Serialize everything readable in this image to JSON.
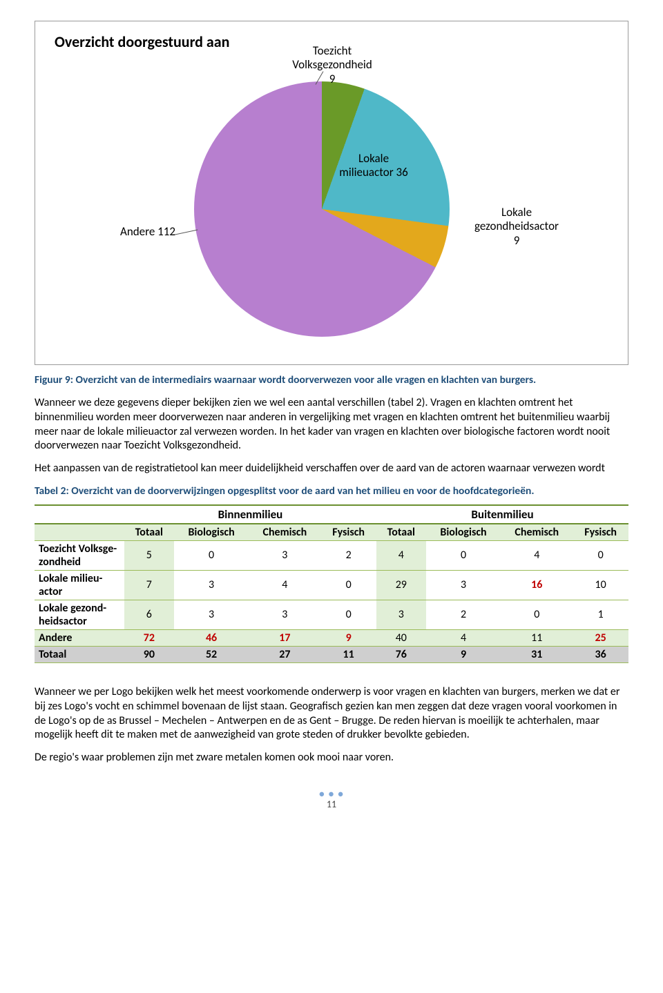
{
  "chart": {
    "title": "Overzicht doorgestuurd aan",
    "slices": [
      {
        "label_text": "Toezicht\nVolksgezondheid\n9",
        "value": 9,
        "color": "#6a9a28"
      },
      {
        "label_text": "Lokale\nmilieuactor 36",
        "value": 36,
        "color": "#4fb8c8"
      },
      {
        "label_text": "Lokale\ngezondheidsactor\n9",
        "value": 9,
        "color": "#e3a81c"
      },
      {
        "label_text": "Andere 112",
        "value": 112,
        "color": "#b77fcf"
      }
    ],
    "labels": {
      "toezicht": "Toezicht\nVolksgezondheid\n9",
      "milieuactor": "Lokale\nmilieuactor 36",
      "gezondheidsactor": "Lokale\ngezondheidsactor\n9",
      "andere": "Andere 112"
    },
    "background_color": "#ffffff",
    "border_color": "#999999"
  },
  "figure_caption": "Figuur 9: Overzicht van de intermediairs waarnaar wordt doorverwezen voor alle vragen en klachten van burgers.",
  "paragraph1": "Wanneer we deze gegevens dieper bekijken zien we wel een aantal verschillen (tabel 2). Vragen en klachten omtrent het binnenmilieu worden meer doorverwezen naar anderen in vergelijking met vragen en klachten omtrent het buitenmilieu waarbij meer naar de lokale milieuactor zal verwezen worden. In het kader van vragen en klachten over biologische factoren wordt nooit doorverwezen naar Toezicht Volksgezondheid.",
  "paragraph2": "Het aanpassen van de registratietool kan meer duidelijkheid verschaffen over de aard van de actoren waarnaar verwezen wordt",
  "table_caption": "Tabel 2: Overzicht van de doorverwijzingen opgesplitst voor de aard van het milieu en voor de hoofdcategorieën.",
  "table": {
    "group_headers": [
      "Binnenmilieu",
      "Buitenmilieu"
    ],
    "sub_headers": [
      "Totaal",
      "Biologisch",
      "Chemisch",
      "Fysisch",
      "Totaal",
      "Biologisch",
      "Chemisch",
      "Fysisch"
    ],
    "rows": [
      {
        "label": "Toezicht Volksge-zondheid",
        "cells": [
          "5",
          "0",
          "3",
          "2",
          "4",
          "0",
          "4",
          "0"
        ],
        "red_idx": []
      },
      {
        "label": "Lokale milieu-actor",
        "cells": [
          "7",
          "3",
          "4",
          "0",
          "29",
          "3",
          "16",
          "10"
        ],
        "red_idx": [
          6
        ]
      },
      {
        "label": "Lokale gezond-heidsactor",
        "cells": [
          "6",
          "3",
          "3",
          "0",
          "3",
          "2",
          "0",
          "1"
        ],
        "red_idx": []
      },
      {
        "label": "Andere",
        "cells": [
          "72",
          "46",
          "17",
          "9",
          "40",
          "4",
          "11",
          "25"
        ],
        "red_idx": [
          0,
          1,
          2,
          3,
          7
        ],
        "class": "andere-row"
      },
      {
        "label": "Totaal",
        "cells": [
          "90",
          "52",
          "27",
          "11",
          "76",
          "9",
          "31",
          "36"
        ],
        "red_idx": [],
        "class": "totaal-row"
      }
    ],
    "styling": {
      "header_bg": "#ffffff",
      "subhdr_bg": "#e1efd7",
      "totalcol_bg": "#e1efd7",
      "totaalrow_bg": "#cfcfcf",
      "border_color": "#9bbb59",
      "thick_border_color": "#6a8f2f",
      "red_color": "#c00000"
    }
  },
  "paragraph3": "Wanneer we per Logo bekijken welk het meest voorkomende onderwerp is voor vragen en klachten van burgers, merken we dat er bij zes Logo's vocht en schimmel bovenaan de lijst staan. Geografisch gezien kan men zeggen dat deze vragen vooral voorkomen in de Logo's op de as Brussel – Mechelen – Antwerpen en de as Gent – Brugge. De reden hiervan is moeilijk te achterhalen, maar mogelijk heeft dit te maken met de aanwezigheid van grote steden of drukker bevolkte gebieden.",
  "paragraph4": "De regio's waar problemen zijn met zware metalen komen ook mooi naar voren.",
  "page_number": "11"
}
